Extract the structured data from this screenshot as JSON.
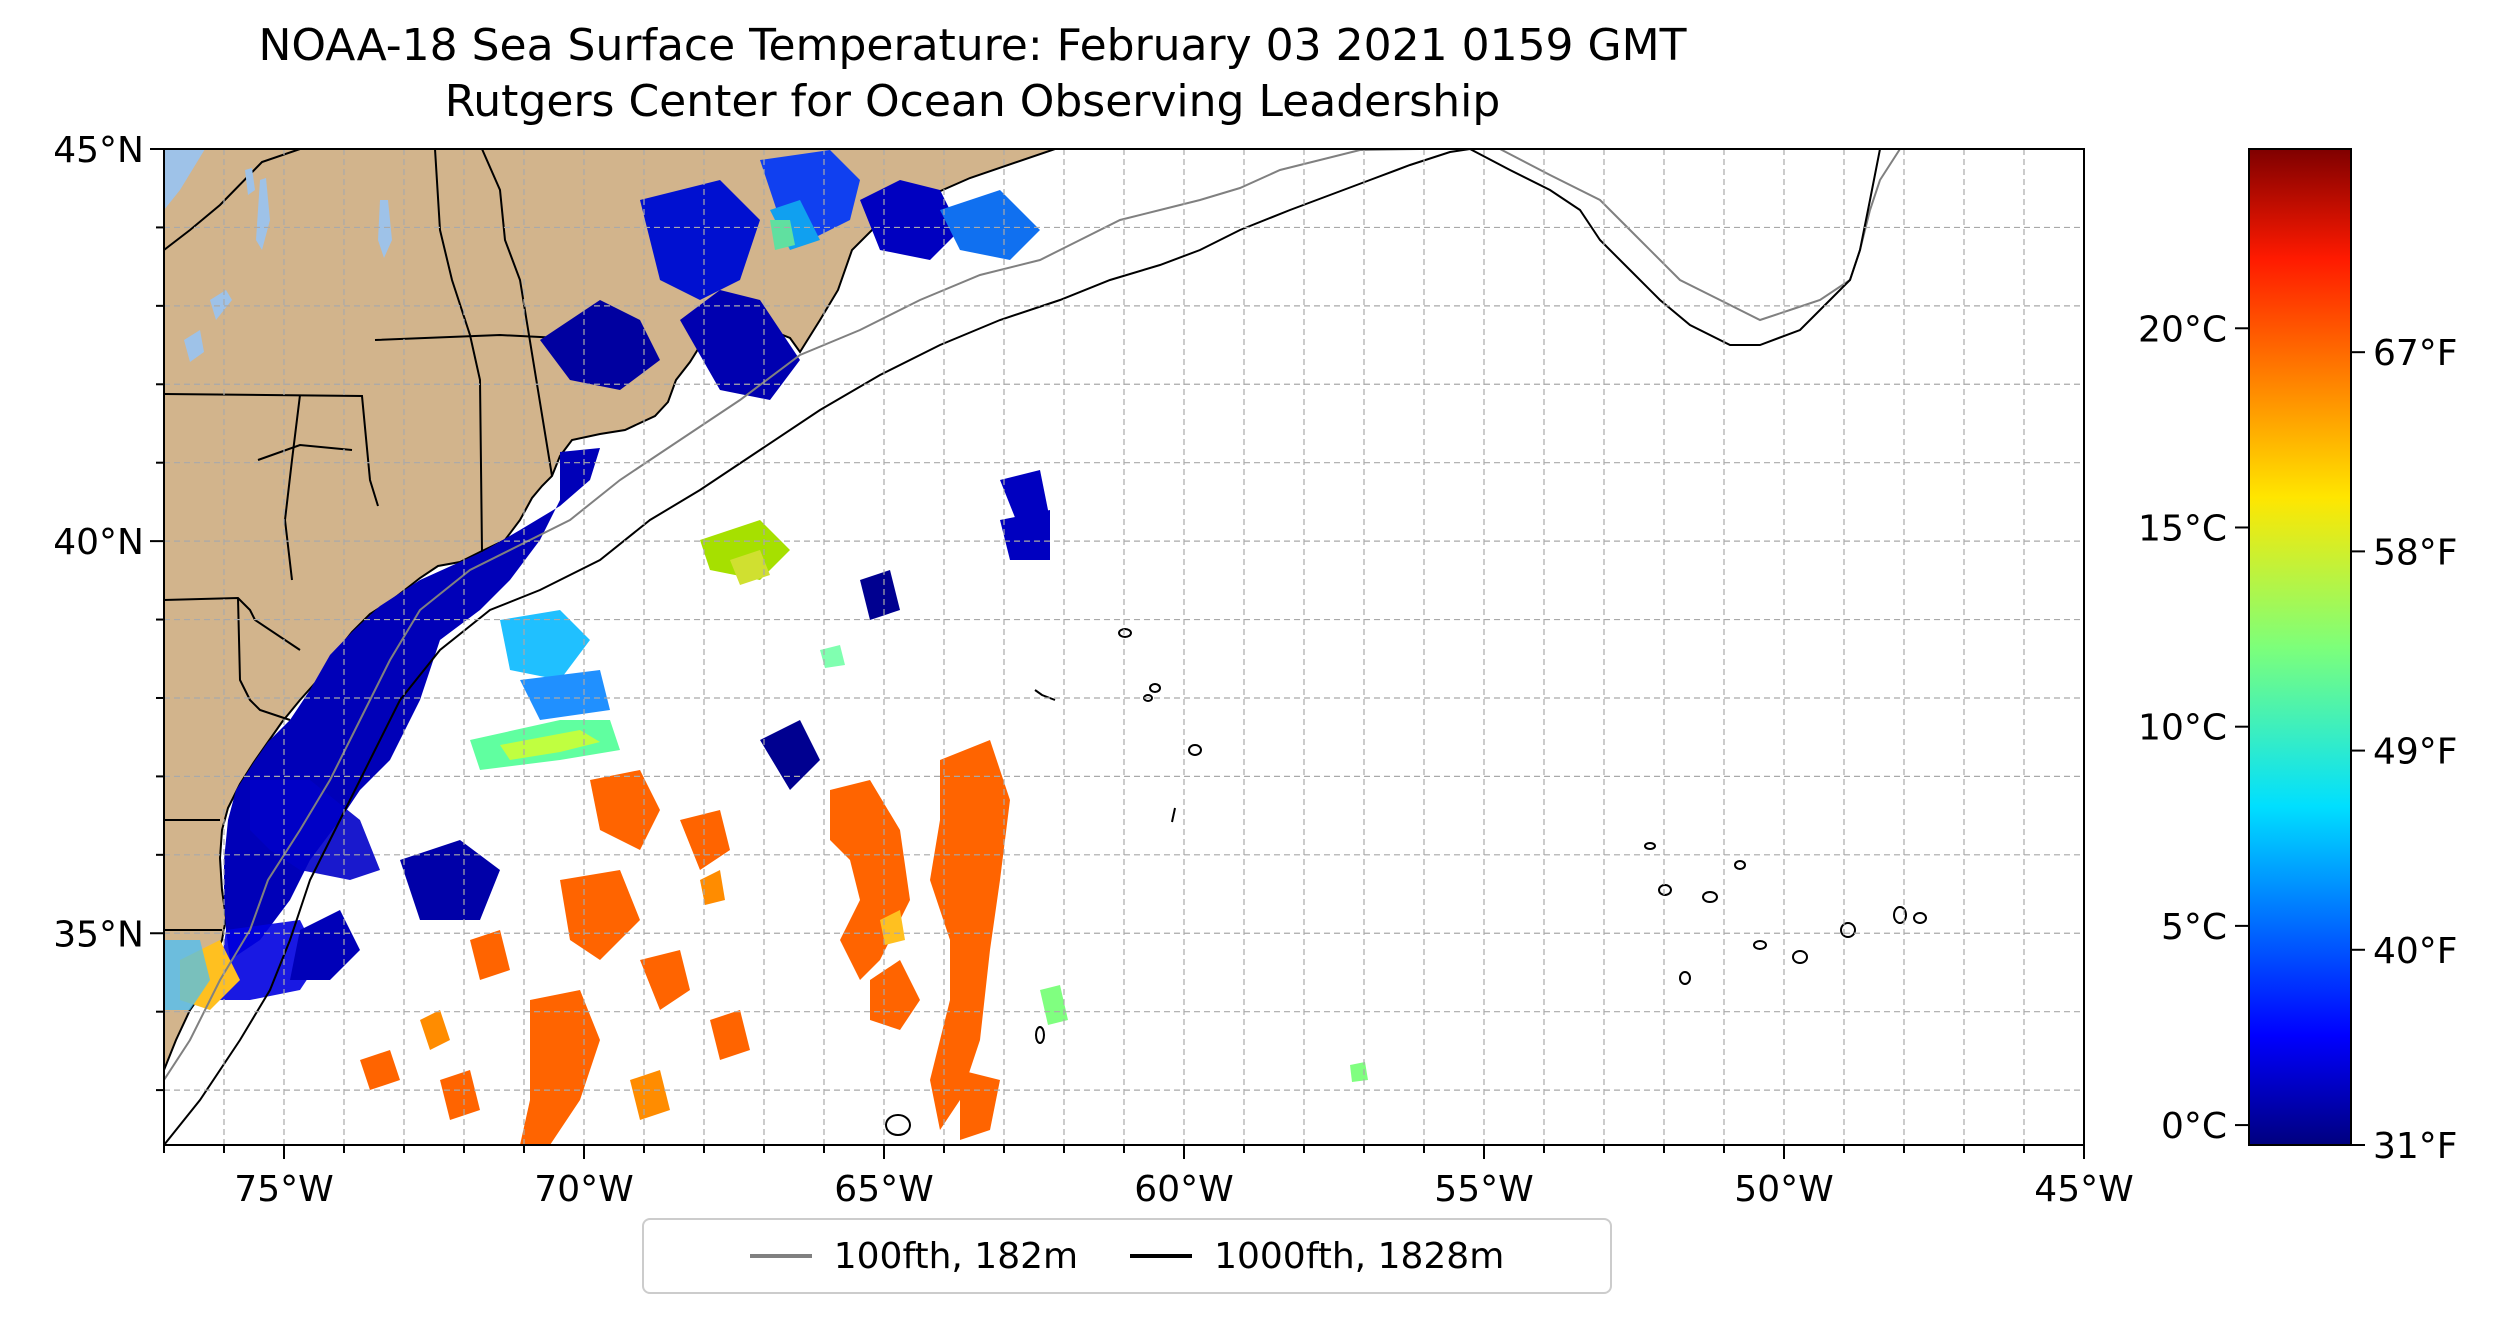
{
  "title": "NOAA-18 Sea Surface Temperature: February 03 2021 0159 GMT",
  "subtitle": "Rutgers Center for Ocean Observing Leadership",
  "map": {
    "extent": {
      "lon": [
        -77,
        -45
      ],
      "lat": [
        32.3,
        45
      ]
    },
    "lat_ticks": [
      {
        "value": 45,
        "label": "45°N"
      },
      {
        "value": 40,
        "label": "40°N"
      },
      {
        "value": 35,
        "label": "35°N"
      }
    ],
    "lon_ticks": [
      {
        "value": -75,
        "label": "75°W"
      },
      {
        "value": -70,
        "label": "70°W"
      },
      {
        "value": -65,
        "label": "65°W"
      },
      {
        "value": -60,
        "label": "60°W"
      },
      {
        "value": -55,
        "label": "55°W"
      },
      {
        "value": -50,
        "label": "50°W"
      },
      {
        "value": -45,
        "label": "45°W"
      }
    ],
    "grid": true,
    "land_color": "#d2b48c",
    "lake_color": "#9ec2e8"
  },
  "colorbar": {
    "colormap": "jet",
    "range_c": [
      -0.5,
      24.5
    ],
    "celsius_ticks": [
      {
        "value": 0,
        "label": "0°C"
      },
      {
        "value": 5,
        "label": "5°C"
      },
      {
        "value": 10,
        "label": "10°C"
      },
      {
        "value": 15,
        "label": "15°C"
      },
      {
        "value": 20,
        "label": "20°C"
      }
    ],
    "fahrenheit_ticks": [
      {
        "value_c": -0.5,
        "label": "31°F"
      },
      {
        "value_c": 4.4,
        "label": "40°F"
      },
      {
        "value_c": 9.4,
        "label": "49°F"
      },
      {
        "value_c": 14.4,
        "label": "58°F"
      },
      {
        "value_c": 19.4,
        "label": "67°F"
      }
    ]
  },
  "legend": {
    "items": [
      {
        "label": "100fth, 182m",
        "color": "#808080"
      },
      {
        "label": "1000fth, 1828m",
        "color": "#000000"
      }
    ]
  }
}
